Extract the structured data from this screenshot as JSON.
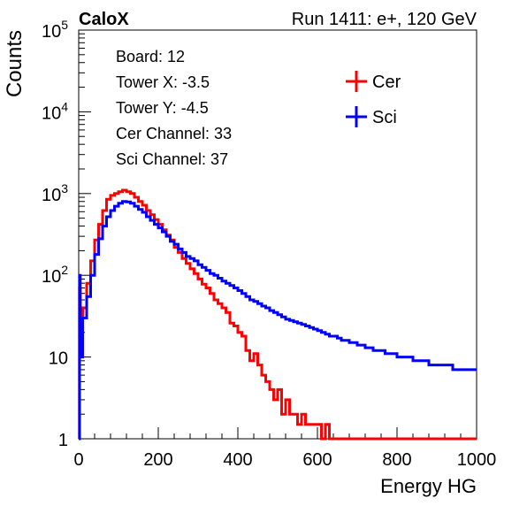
{
  "header": {
    "left_label": "CaloX",
    "right_label": "Run 1411: e+, 120 GeV"
  },
  "info_box": {
    "lines": [
      "Board: 12",
      "Tower X: -3.5",
      "Tower Y: -4.5",
      "Cer Channel: 33",
      "Sci Channel: 37"
    ]
  },
  "chart_data": {
    "type": "line",
    "xlabel": "Energy HG",
    "ylabel": "Counts",
    "xlim": [
      0,
      1000
    ],
    "ylim": [
      1,
      100000
    ],
    "y_scale": "log",
    "x_ticks": [
      0,
      200,
      400,
      600,
      800,
      1000
    ],
    "y_ticks": [
      {
        "value": 1,
        "base": "1",
        "exp": ""
      },
      {
        "value": 10,
        "base": "10",
        "exp": ""
      },
      {
        "value": 100,
        "base": "10",
        "exp": "2"
      },
      {
        "value": 1000,
        "base": "10",
        "exp": "3"
      },
      {
        "value": 10000,
        "base": "10",
        "exp": "4"
      },
      {
        "value": 100000,
        "base": "10",
        "exp": "5"
      }
    ],
    "grid": false,
    "legend_position": "top-right",
    "series": [
      {
        "name": "Cer",
        "color": "#ff0000",
        "x": [
          0,
          2,
          4,
          6,
          10,
          20,
          30,
          40,
          50,
          60,
          70,
          80,
          90,
          100,
          110,
          120,
          130,
          140,
          150,
          160,
          170,
          180,
          190,
          200,
          210,
          220,
          230,
          240,
          250,
          260,
          270,
          280,
          290,
          300,
          310,
          320,
          330,
          340,
          350,
          360,
          370,
          380,
          390,
          400,
          410,
          420,
          430,
          440,
          450,
          460,
          470,
          480,
          490,
          500,
          510,
          520,
          530,
          540,
          550,
          560,
          570,
          580,
          590,
          600,
          610,
          620,
          630,
          640,
          650,
          660,
          670,
          680,
          690,
          700,
          710,
          720,
          730,
          740,
          750,
          760,
          770,
          780,
          790,
          800,
          810,
          820,
          830,
          840,
          850,
          860,
          870,
          880,
          890,
          900,
          910,
          920,
          930,
          940,
          950,
          960,
          970,
          980,
          990,
          1000
        ],
        "y": [
          1,
          70,
          30,
          22,
          40,
          80,
          150,
          270,
          420,
          620,
          850,
          950,
          1000,
          1050,
          1100,
          1050,
          1000,
          900,
          800,
          720,
          620,
          550,
          480,
          420,
          360,
          310,
          270,
          220,
          190,
          160,
          140,
          120,
          105,
          90,
          78,
          70,
          60,
          50,
          45,
          40,
          35,
          26,
          24,
          20,
          18,
          12,
          9,
          11,
          8,
          6,
          5,
          4,
          3,
          4,
          2,
          3,
          2,
          2,
          1.5,
          2,
          1.5,
          1.5,
          1.5,
          1.5,
          1,
          1.5,
          1,
          1,
          1,
          1,
          1,
          1,
          1,
          1,
          1,
          1,
          1,
          1,
          1,
          1,
          1,
          1,
          1,
          1,
          1,
          1,
          1,
          1,
          1,
          1,
          1,
          1,
          1,
          1,
          1,
          1,
          1,
          1,
          1,
          1,
          1,
          1,
          1,
          1
        ]
      },
      {
        "name": "Sci",
        "color": "#0000ff",
        "x": [
          0,
          2,
          4,
          6,
          10,
          20,
          30,
          40,
          50,
          60,
          70,
          80,
          90,
          100,
          110,
          120,
          130,
          140,
          150,
          160,
          170,
          180,
          190,
          200,
          210,
          220,
          230,
          240,
          250,
          260,
          270,
          280,
          290,
          300,
          310,
          320,
          330,
          340,
          350,
          360,
          370,
          380,
          390,
          400,
          410,
          420,
          430,
          440,
          450,
          460,
          470,
          480,
          490,
          500,
          510,
          520,
          530,
          540,
          550,
          560,
          570,
          580,
          590,
          600,
          610,
          620,
          630,
          640,
          650,
          660,
          670,
          680,
          690,
          700,
          710,
          720,
          730,
          740,
          750,
          760,
          770,
          780,
          790,
          800,
          810,
          820,
          830,
          840,
          850,
          860,
          870,
          880,
          890,
          900,
          910,
          920,
          930,
          940,
          950,
          960,
          970,
          980,
          990,
          1000
        ],
        "y": [
          1,
          100,
          15,
          10,
          30,
          55,
          100,
          180,
          280,
          400,
          520,
          620,
          700,
          760,
          800,
          790,
          760,
          700,
          640,
          590,
          520,
          470,
          420,
          380,
          340,
          300,
          260,
          240,
          210,
          190,
          170,
          160,
          150,
          135,
          125,
          115,
          105,
          100,
          92,
          85,
          80,
          75,
          70,
          65,
          60,
          55,
          50,
          48,
          45,
          42,
          40,
          37,
          35,
          33,
          31,
          29,
          28,
          27,
          26,
          25,
          24,
          23,
          22,
          21,
          20,
          19,
          18,
          18,
          17,
          16,
          16,
          15,
          15,
          14,
          14,
          13,
          13,
          12,
          12,
          12,
          11,
          11,
          11,
          10,
          10,
          10,
          10,
          9,
          9,
          9,
          9,
          8,
          8,
          8,
          8,
          8,
          8,
          7,
          7,
          7,
          7,
          7,
          7,
          7
        ]
      }
    ]
  }
}
